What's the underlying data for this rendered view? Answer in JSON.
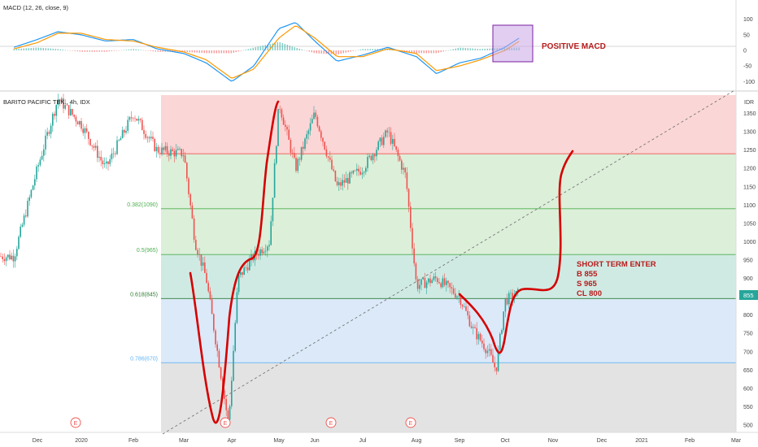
{
  "macd_header": {
    "label": "MACD (12, 26, close, 9)"
  },
  "main_header": {
    "label": "BARITO PACIFIC TBK., 4h, IDX"
  },
  "currency": "IDR",
  "last_price": "855",
  "colors": {
    "hist_pos": "#26a69a",
    "hist_neg": "#ef5350",
    "macd_line": "#2196f3",
    "signal_line": "#ff9800",
    "candle_up": "#26a69a",
    "candle_down": "#ef5350",
    "annotation": "#d50000",
    "fib_band_red": "#fbd6d6",
    "fib_band_green": "#dcefd9",
    "fib_band_teal": "#cfeae3",
    "fib_band_blue": "#dbe9f8",
    "fib_band_grey": "#e3e3e3",
    "macd_box": "#c9a6e6"
  },
  "annotations": {
    "positive_macd": "POSITIVE MACD",
    "trade_plan": [
      "SHORT TERM ENTER",
      "B 855",
      "S 965",
      "CL 800"
    ]
  },
  "earnings_marker": "E",
  "chart_data": [
    {
      "type": "bar",
      "panel": "MACD (12, 26, close, 9)",
      "ylim": [
        -120,
        120
      ],
      "yticks": [
        100,
        50,
        0,
        -50,
        -100
      ],
      "x": [
        "Nov 15",
        "Dec 1",
        "Dec 15",
        "Jan 1",
        "Jan 15",
        "Feb 1",
        "Feb 15",
        "Mar 1",
        "Mar 15",
        "Apr 1",
        "Apr 15",
        "May 1",
        "May 15",
        "Jun 1",
        "Jun 15",
        "Jul 1",
        "Jul 15",
        "Aug 1",
        "Aug 15",
        "Sep 1",
        "Sep 15",
        "Oct 1",
        "Oct 10"
      ],
      "series": [
        {
          "name": "MACD",
          "values": [
            10,
            35,
            60,
            50,
            30,
            35,
            5,
            -10,
            -40,
            -100,
            -50,
            70,
            90,
            30,
            -35,
            -15,
            10,
            -20,
            -75,
            -40,
            -25,
            10,
            40
          ]
        },
        {
          "name": "Signal",
          "values": [
            5,
            25,
            55,
            55,
            35,
            30,
            10,
            -5,
            -30,
            -90,
            -60,
            40,
            80,
            40,
            -20,
            -20,
            5,
            -10,
            -65,
            -50,
            -30,
            0,
            30
          ]
        }
      ]
    },
    {
      "type": "line",
      "panel": "BARITO PACIFIC TBK., 4h, IDX",
      "ylim": [
        480,
        1400
      ],
      "yticks": [
        1350,
        1300,
        1250,
        1200,
        1150,
        1100,
        1050,
        1000,
        950,
        900,
        850,
        800,
        750,
        700,
        650,
        600,
        550,
        500
      ],
      "xticks": [
        "Dec",
        "2020",
        "Feb",
        "Mar",
        "Apr",
        "May",
        "Jun",
        "Jul",
        "Aug",
        "Sep",
        "Oct",
        "Nov",
        "Dec",
        "2021",
        "Feb",
        "Mar"
      ],
      "x": [
        "Nov 15",
        "Dec 1",
        "Dec 15",
        "Jan 1",
        "Jan 15",
        "Feb 1",
        "Feb 15",
        "Mar 1",
        "Mar 8",
        "Mar 15",
        "Mar 22",
        "Mar 29",
        "Apr 5",
        "Apr 15",
        "Apr 25",
        "May 1",
        "May 15",
        "Jun 1",
        "Jun 15",
        "Jul 1",
        "Jul 15",
        "Jul 25",
        "Aug 1",
        "Aug 15",
        "Sep 1",
        "Sep 10",
        "Sep 20",
        "Sep 25",
        "Oct 1",
        "Oct 10"
      ],
      "series": [
        {
          "name": "Price",
          "values": [
            960,
            1200,
            1390,
            1320,
            1200,
            1350,
            1250,
            1240,
            1000,
            900,
            700,
            500,
            900,
            960,
            1000,
            1380,
            1200,
            1350,
            1150,
            1200,
            1300,
            1180,
            880,
            900,
            850,
            760,
            700,
            650,
            840,
            860
          ]
        }
      ],
      "fib_levels": [
        {
          "label": "",
          "value": 1240
        },
        {
          "label": "0.382(1090)",
          "value": 1090
        },
        {
          "label": "0.5(965)",
          "value": 965
        },
        {
          "label": "0.618(845)",
          "value": 845
        },
        {
          "label": "0.786(670)",
          "value": 670
        }
      ]
    }
  ]
}
